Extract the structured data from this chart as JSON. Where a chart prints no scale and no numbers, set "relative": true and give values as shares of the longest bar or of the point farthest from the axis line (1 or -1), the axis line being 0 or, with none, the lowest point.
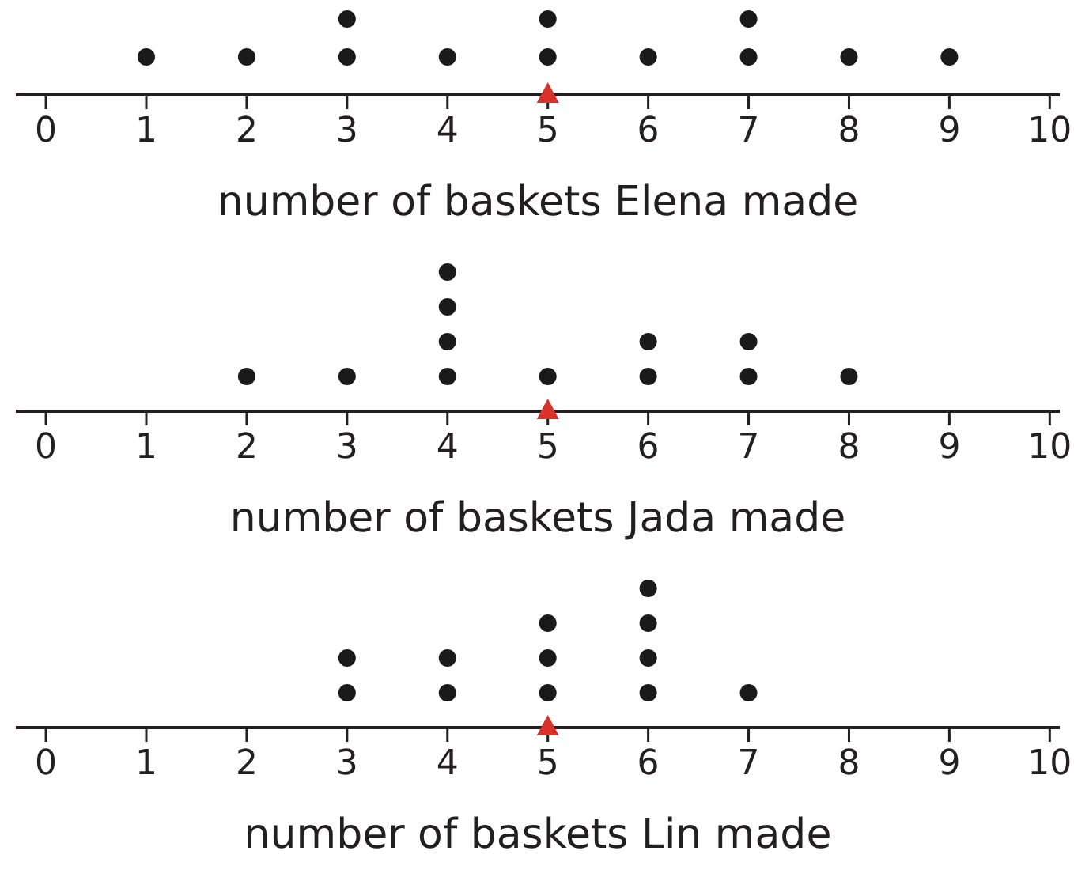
{
  "chart_data": [
    {
      "type": "scatter",
      "xlabel": "number of baskets Elena made",
      "xlim": [
        -0.3,
        10.1
      ],
      "xticks": [
        0,
        1,
        2,
        3,
        4,
        5,
        6,
        7,
        8,
        9,
        10
      ],
      "relative": true,
      "tick_labels": "x",
      "series": [
        {
          "marker": "circle",
          "color": "#1a1a1a",
          "x": [
            1,
            2,
            3,
            3,
            4,
            5,
            5,
            6,
            7,
            7,
            8,
            9
          ],
          "values": [
            0.5,
            0.5,
            0.5,
            1,
            0.5,
            0.5,
            1,
            0.5,
            0.5,
            1,
            0.5,
            0.5
          ]
        },
        {
          "type": "scatter",
          "marker": "triangle",
          "color": "#d9322b",
          "x": [
            5
          ],
          "values": [
            0
          ]
        }
      ]
    },
    {
      "type": "scatter",
      "xlabel": "number of baskets Jada made",
      "xlim": [
        -0.3,
        10.1
      ],
      "xticks": [
        0,
        1,
        2,
        3,
        4,
        5,
        6,
        7,
        8,
        9,
        10
      ],
      "relative": true,
      "tick_labels": "x",
      "series": [
        {
          "marker": "circle",
          "color": "#1a1a1a",
          "x": [
            2,
            3,
            4,
            4,
            4,
            4,
            5,
            6,
            6,
            7,
            7,
            8
          ],
          "values": [
            0.25,
            0.25,
            0.25,
            0.5,
            0.75,
            1,
            0.25,
            0.25,
            0.5,
            0.25,
            0.5,
            0.25
          ]
        },
        {
          "type": "scatter",
          "marker": "triangle",
          "color": "#d9322b",
          "x": [
            5
          ],
          "values": [
            0
          ]
        }
      ]
    },
    {
      "type": "scatter",
      "xlabel": "number of baskets Lin made",
      "xlim": [
        -0.3,
        10.1
      ],
      "xticks": [
        0,
        1,
        2,
        3,
        4,
        5,
        6,
        7,
        8,
        9,
        10
      ],
      "relative": true,
      "tick_labels": "x",
      "series": [
        {
          "marker": "circle",
          "color": "#1a1a1a",
          "x": [
            3,
            3,
            4,
            4,
            5,
            5,
            5,
            6,
            6,
            6,
            6,
            7
          ],
          "values": [
            0.25,
            0.5,
            0.25,
            0.5,
            0.25,
            0.5,
            0.75,
            0.25,
            0.5,
            0.75,
            1,
            0.25
          ]
        },
        {
          "type": "scatter",
          "marker": "triangle",
          "color": "#d9322b",
          "x": [
            5
          ],
          "values": [
            0
          ]
        }
      ]
    }
  ]
}
